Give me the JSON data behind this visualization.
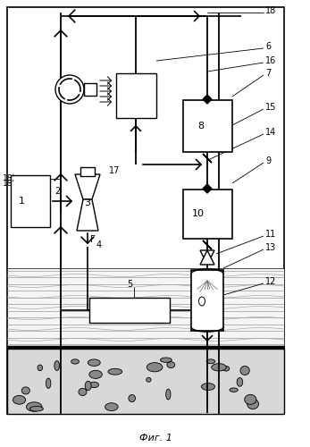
{
  "title": "Фиг. 1",
  "bg_color": "#ffffff"
}
